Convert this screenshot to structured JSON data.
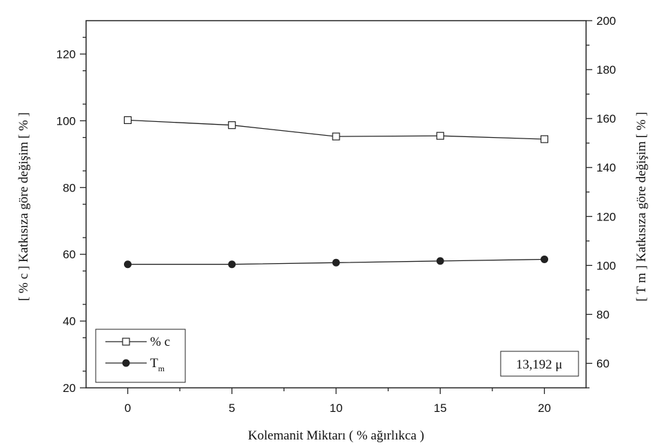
{
  "chart_data": {
    "type": "line",
    "xlabel": "Kolemanit Miktarı ( % ağırlıkca )",
    "ylabel_left": "[ % c ] Katkısıza göre değişim [ % ]",
    "ylabel_right": "[ T m ] Katkısıza göre değişim [ % ]",
    "x_ticks": [
      "0",
      "5",
      "10",
      "15",
      "20"
    ],
    "y_left_ticks": [
      "20",
      "40",
      "60",
      "80",
      "100",
      "120"
    ],
    "y_right_ticks": [
      "60",
      "80",
      "100",
      "120",
      "140",
      "160",
      "180",
      "200"
    ],
    "xlim": [
      -2,
      22
    ],
    "ylim_left": [
      20,
      130
    ],
    "ylim_right": [
      50,
      200
    ],
    "x": [
      0,
      5,
      10,
      15,
      20
    ],
    "series": [
      {
        "name": "% c",
        "axis": "left",
        "marker": "open-square",
        "values": [
          100.2,
          98.7,
          95.3,
          95.5,
          94.5
        ]
      },
      {
        "name": "T m",
        "axis": "left",
        "marker": "filled-circle",
        "values": [
          57.0,
          57.0,
          57.5,
          58.0,
          58.5
        ]
      }
    ],
    "legend": [
      {
        "label": "% c"
      },
      {
        "label": "T",
        "subscript": "m"
      }
    ],
    "legend_position": "bottom-left",
    "annotation": "13,192 μ",
    "annotation_position": "bottom-right",
    "grid": false,
    "colors": {
      "line": "#222222",
      "marker_fill": "#222222",
      "background": "#ffffff"
    }
  }
}
